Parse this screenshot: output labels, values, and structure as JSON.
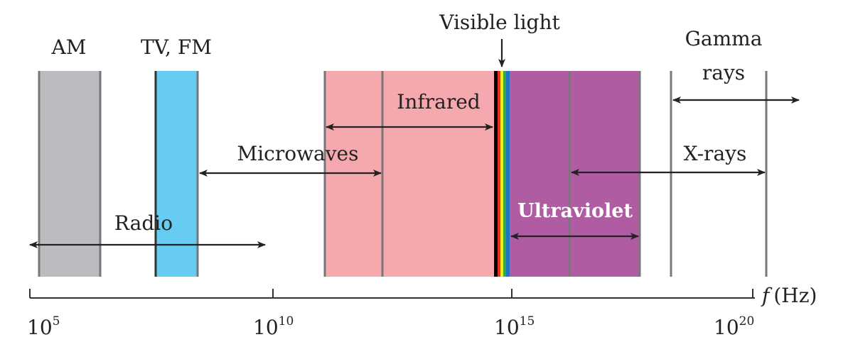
{
  "bands": {
    "am": {
      "label": "AM",
      "color": "#bbbcc0"
    },
    "tvfm": {
      "label": "TV, FM",
      "color": "#66ccf2"
    },
    "infrared": {
      "label": "Infrared",
      "color": "#f5a9ae"
    },
    "visible": {
      "label": "Visible light"
    },
    "ultraviolet": {
      "label": "Ultraviolet",
      "color": "#b05ca3"
    }
  },
  "ranges": {
    "radio": "Radio",
    "microwaves": "Microwaves",
    "xrays": "X-rays",
    "gamma_line1": "Gamma",
    "gamma_line2": "rays"
  },
  "axis": {
    "label_f": "f",
    "label_unit": "(Hz)",
    "ticks": [
      {
        "base": "10",
        "exp": "5"
      },
      {
        "base": "10",
        "exp": "10"
      },
      {
        "base": "10",
        "exp": "15"
      },
      {
        "base": "10",
        "exp": "20"
      }
    ]
  },
  "colors": {
    "line": "#777777",
    "arrow": "#222222",
    "spectrum": [
      "#000000",
      "#e53020",
      "#f3ea1d",
      "#3aaa35",
      "#1f73c9"
    ]
  }
}
